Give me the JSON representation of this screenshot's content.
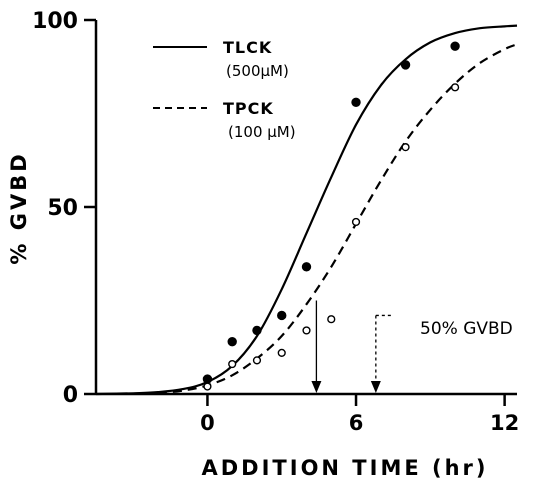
{
  "chart_data": {
    "type": "line",
    "xlabel": "ADDITION TIME (hr)",
    "ylabel": "% GVBD",
    "xlim": [
      -4.5,
      12.5
    ],
    "ylim": [
      0,
      100
    ],
    "xticks": [
      "0",
      "6",
      "12"
    ],
    "yticks": [
      "0",
      "50",
      "100"
    ],
    "grid": false,
    "legend_position": "top-left",
    "series": [
      {
        "name": "TLCK",
        "concentration": "(500µM)",
        "line_style": "solid",
        "marker": "filled-circle",
        "color": "#000000",
        "curve": {
          "x": [
            -4.5,
            -3,
            -2,
            -1,
            0,
            1,
            2,
            3,
            4,
            5,
            6,
            7,
            8,
            9,
            10,
            11,
            12,
            12.5
          ],
          "y": [
            0,
            0.2,
            0.5,
            1.3,
            3.2,
            7.5,
            15.5,
            28,
            43,
            58,
            72,
            82.5,
            89.5,
            94,
            96.5,
            97.8,
            98.3,
            98.5
          ]
        },
        "points": {
          "x": [
            0,
            1,
            2,
            3,
            4,
            6,
            8,
            10
          ],
          "y": [
            4,
            14,
            17,
            21,
            34,
            78,
            88,
            93
          ]
        }
      },
      {
        "name": "TPCK",
        "concentration": "(100 µM)",
        "line_style": "dashed",
        "marker": "open-circle",
        "color": "#000000",
        "curve": {
          "x": [
            -2,
            -1,
            0,
            1,
            2,
            3,
            4,
            5,
            6,
            7,
            8,
            9,
            10,
            11,
            12,
            12.5
          ],
          "y": [
            0.3,
            0.9,
            2.3,
            5,
            9.5,
            15.5,
            24,
            34,
            45.5,
            57,
            67.5,
            76,
            83,
            88.5,
            92.2,
            93.5
          ]
        },
        "points": {
          "x": [
            0,
            1,
            2,
            3,
            4,
            5,
            6,
            8,
            10
          ],
          "y": [
            2,
            8,
            9,
            11,
            17,
            20,
            46,
            66,
            82
          ]
        }
      }
    ],
    "markers_50pct": [
      {
        "series": "TLCK",
        "x": 4.4,
        "line_style": "solid"
      },
      {
        "series": "TPCK",
        "x": 6.8,
        "line_style": "dashed"
      }
    ],
    "annotation": "50% GVBD"
  }
}
